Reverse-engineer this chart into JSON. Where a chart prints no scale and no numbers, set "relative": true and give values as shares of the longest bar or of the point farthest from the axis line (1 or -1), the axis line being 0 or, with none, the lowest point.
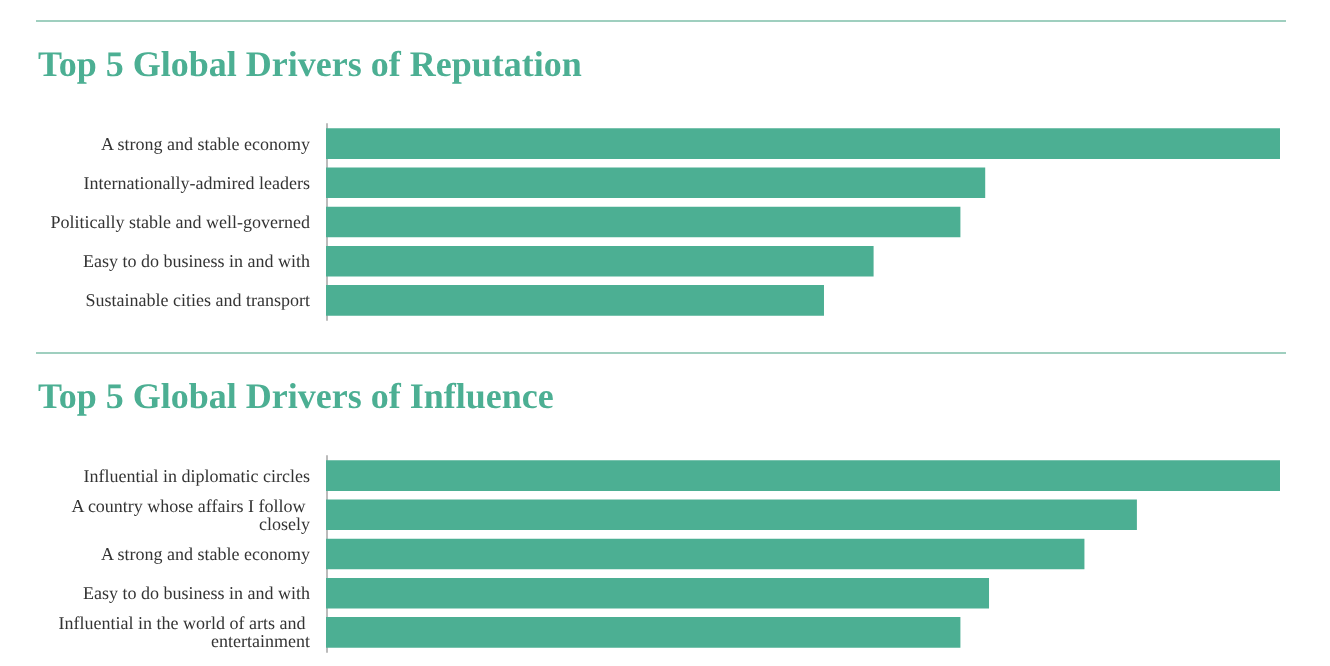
{
  "chart_data": [
    {
      "type": "bar",
      "title": "Top 5 Global Drivers of Reputation",
      "orientation": "horizontal",
      "relative": true,
      "categories": [
        "A strong and stable economy",
        "Internationally-admired leaders",
        "Politically stable and well-governed",
        "Easy to do business in and with",
        "Sustainable cities and transport"
      ],
      "values": [
        1,
        0.691,
        0.665,
        0.574,
        0.522
      ],
      "color": "#4caf93"
    },
    {
      "type": "bar",
      "title": "Top 5 Global Drivers of Influence",
      "orientation": "horizontal",
      "relative": true,
      "categories": [
        "Influential in diplomatic circles",
        "A country whose affairs I follow closely",
        "A strong and stable economy",
        "Easy to do business in and with",
        "Influential in the world of arts and entertainment"
      ],
      "values": [
        1,
        0.85,
        0.795,
        0.695,
        0.665
      ],
      "color": "#4caf93"
    }
  ]
}
